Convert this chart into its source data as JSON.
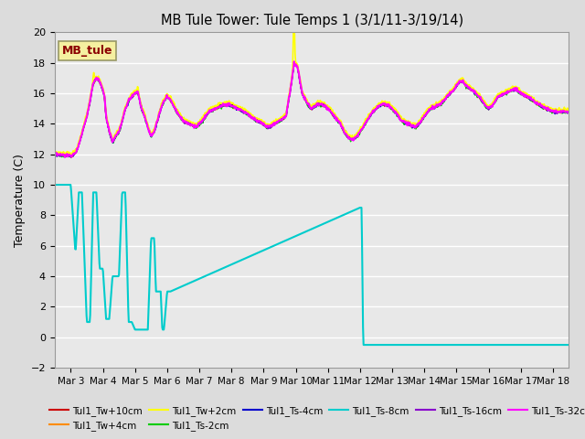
{
  "title": "MB Tule Tower: Tule Temps 1 (3/1/11-3/19/14)",
  "ylabel": "Temperature (C)",
  "ylim": [
    -2,
    20
  ],
  "yticks": [
    -2,
    0,
    2,
    4,
    6,
    8,
    10,
    12,
    14,
    16,
    18,
    20
  ],
  "background_color": "#dcdcdc",
  "plot_bg_color": "#e8e8e8",
  "legend_box_color": "#f5f0a0",
  "legend_box_text": "MB_tule",
  "legend_box_text_color": "#8b0000",
  "series": {
    "Tul1_Tw+10cm": {
      "color": "#cc0000",
      "lw": 1.0
    },
    "Tul1_Tw+4cm": {
      "color": "#ff8c00",
      "lw": 1.0
    },
    "Tul1_Tw+2cm": {
      "color": "#ffff00",
      "lw": 1.2
    },
    "Tul1_Ts-2cm": {
      "color": "#00cc00",
      "lw": 1.0
    },
    "Tul1_Ts-4cm": {
      "color": "#0000cc",
      "lw": 1.0
    },
    "Tul1_Ts-8cm": {
      "color": "#00cccc",
      "lw": 1.5
    },
    "Tul1_Ts-16cm": {
      "color": "#8800cc",
      "lw": 1.2
    },
    "Tul1_Ts-32cm": {
      "color": "#ff00ff",
      "lw": 1.5
    }
  },
  "xtick_labels": [
    "Mar 3",
    "Mar 4",
    "Mar 5",
    "Mar 6",
    "Mar 7",
    "Mar 8",
    "Mar 9",
    "Mar 10",
    "Mar 11",
    "Mar 12",
    "Mar 13",
    "Mar 14",
    "Mar 15",
    "Mar 16",
    "Mar 17",
    "Mar 18"
  ],
  "xtick_positions": [
    3,
    4,
    5,
    6,
    7,
    8,
    9,
    10,
    11,
    12,
    13,
    14,
    15,
    16,
    17,
    18
  ],
  "xlim": [
    2.5,
    18.5
  ]
}
